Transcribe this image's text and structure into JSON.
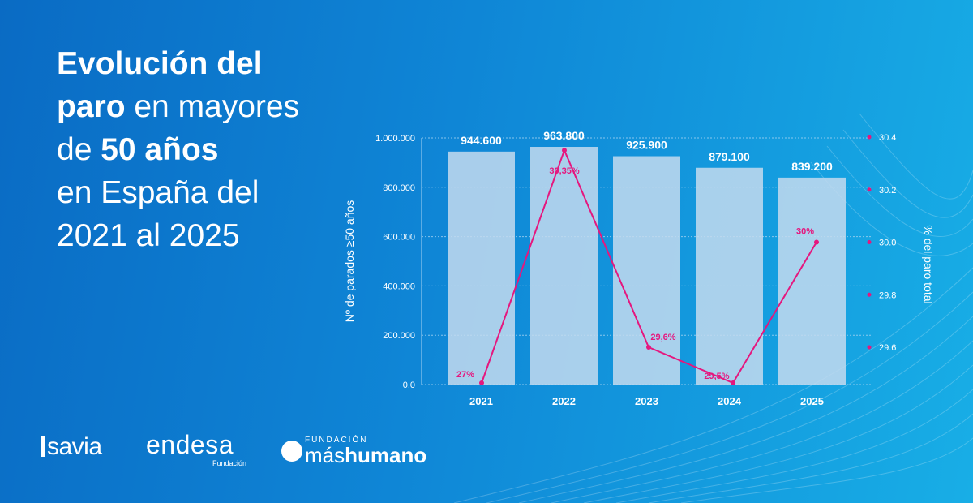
{
  "title_lines": [
    [
      {
        "t": "Evolución del",
        "b": true
      }
    ],
    [
      {
        "t": "paro",
        "b": true
      },
      {
        "t": " en mayores",
        "b": false
      }
    ],
    [
      {
        "t": "de ",
        "b": false
      },
      {
        "t": "50 años",
        "b": true
      }
    ],
    [
      {
        "t": "en España del",
        "b": false
      }
    ],
    [
      {
        "t": "2021 al 2025",
        "b": false
      }
    ]
  ],
  "colors": {
    "bar": "#c4dbef",
    "line": "#e5177e",
    "grid": "#a8d4f2",
    "text": "#ffffff"
  },
  "logos": {
    "savia": "savia",
    "endesa": "endesa",
    "endesa_sub": "Fundación",
    "fundacion": "FUNDACIÓN",
    "mas": "más",
    "humano": "humano"
  },
  "chart_data": {
    "type": "bar",
    "categories": [
      "2021",
      "2022",
      "2023",
      "2024",
      "2025"
    ],
    "series": [
      {
        "values": [
          944600,
          963800,
          925900,
          879100,
          839200
        ],
        "labels": [
          "944.600",
          "963.800",
          "925.900",
          "879.100",
          "839.200"
        ],
        "axis": "left"
      },
      {
        "type": "line",
        "values": [
          27,
          30.35,
          29.6,
          29.5,
          30
        ],
        "labels": [
          "27%",
          "30,35%",
          "29,6%",
          "29,5%",
          "30%"
        ],
        "axis": "right"
      }
    ],
    "ylabel": "Nº de parados ≥50 años",
    "y2label": "% del paro total",
    "ylim": [
      0,
      1000000
    ],
    "yticks": [
      "0.0",
      "200.000",
      "400.000",
      "600.000",
      "800.000",
      "1.000.000"
    ],
    "y2ticks": [
      "29.6",
      "29.8",
      "30.0",
      "30.2",
      "30.4"
    ],
    "grid": true
  }
}
